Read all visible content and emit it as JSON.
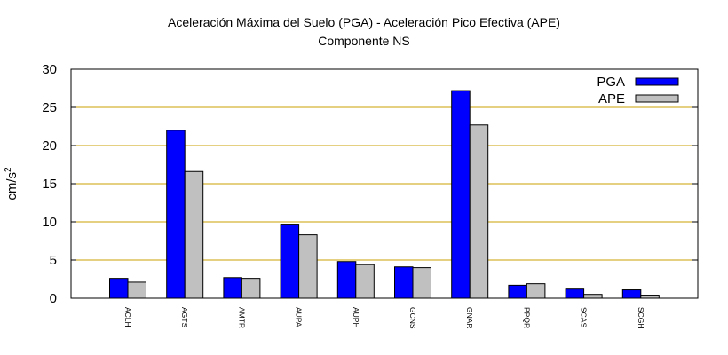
{
  "chart_data": {
    "type": "bar",
    "title": "Aceleración Máxima del Suelo (PGA) -  Aceleración Pico Efectiva (APE)",
    "subtitle": "Componente NS",
    "xlabel": "",
    "ylabel": "cm/s",
    "ylabel_superscript": "2",
    "ylim": [
      0,
      30
    ],
    "yticks": [
      "0",
      "5",
      "10",
      "15",
      "20",
      "25",
      "30"
    ],
    "grid": true,
    "legend_position": "top-right",
    "categories": [
      "ACLH",
      "AGTS",
      "AMTR",
      "AUPA",
      "AUPH",
      "GCNS",
      "GNAR",
      "PPQR",
      "SCAS",
      "SCGH"
    ],
    "series": [
      {
        "name": "PGA",
        "color": "#0000ff",
        "values": [
          2.6,
          22.0,
          2.7,
          9.7,
          4.8,
          4.1,
          27.2,
          1.7,
          1.2,
          1.1
        ]
      },
      {
        "name": "APE",
        "color": "#c0c0c0",
        "values": [
          2.1,
          16.6,
          2.6,
          8.3,
          4.4,
          4.0,
          22.7,
          1.9,
          0.5,
          0.4
        ]
      }
    ],
    "grid_color": "#c8a000"
  }
}
